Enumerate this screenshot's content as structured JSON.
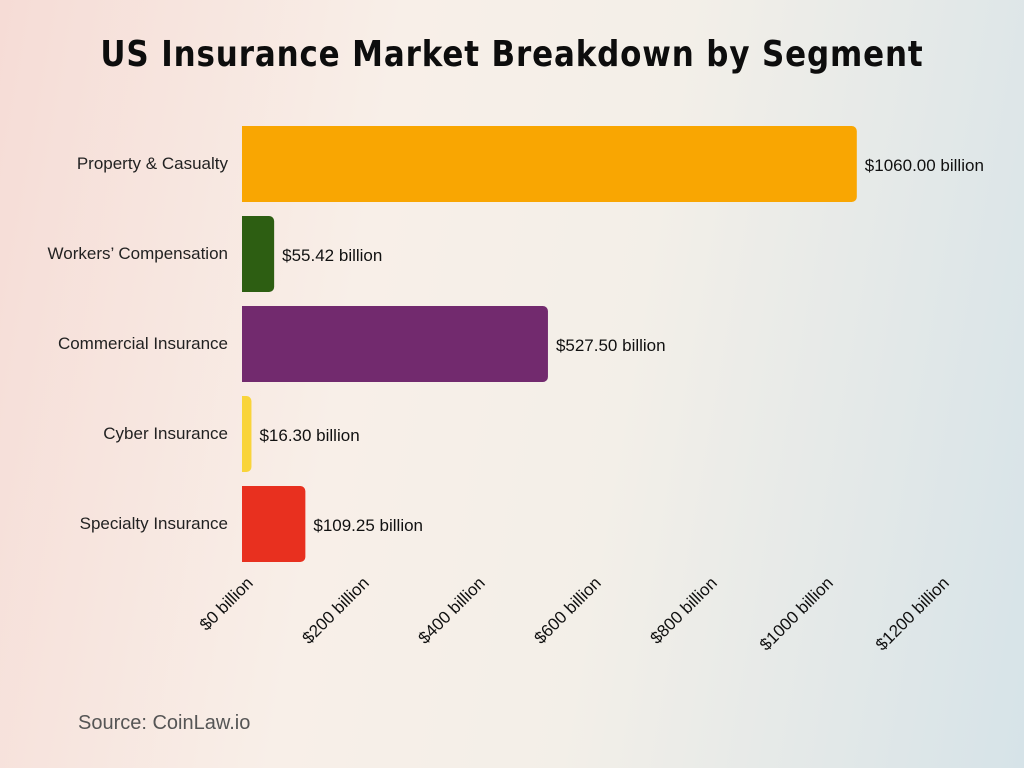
{
  "chart_data": {
    "type": "bar",
    "orientation": "horizontal",
    "title": "US Insurance Market Breakdown by Segment",
    "categories": [
      "Property & Casualty",
      "Workers’ Compensation",
      "Commercial Insurance",
      "Cyber Insurance",
      "Specialty Insurance"
    ],
    "values": [
      1060.0,
      55.42,
      527.5,
      16.3,
      109.25
    ],
    "data_labels": [
      "$1060.00 billion",
      "$55.42 billion",
      "$527.50 billion",
      "$16.30 billion",
      "$109.25 billion"
    ],
    "colors": [
      "#f9a602",
      "#2d5e12",
      "#722a6e",
      "#f9d43a",
      "#e8301f"
    ],
    "xlim": [
      0,
      1200
    ],
    "x_ticks": [
      0,
      200,
      400,
      600,
      800,
      1000,
      1200
    ],
    "x_tick_labels": [
      "$0 billion",
      "$200 billion",
      "$400 billion",
      "$600 billion",
      "$800 billion",
      "$1000 billion",
      "$1200 billion"
    ],
    "grid": false,
    "xlabel": "",
    "ylabel": ""
  },
  "source": "Source: CoinLaw.io"
}
